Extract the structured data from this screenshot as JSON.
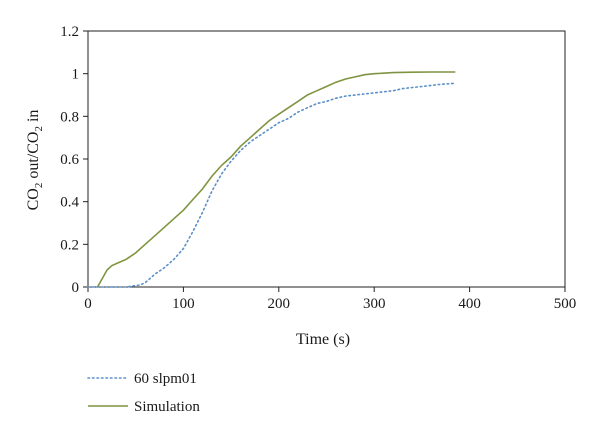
{
  "chart_data": {
    "type": "line",
    "title": "",
    "xlabel": "Time (s)",
    "ylabel_parts": [
      "CO",
      "2",
      " out/CO",
      "2",
      " in"
    ],
    "xlim": [
      0,
      500
    ],
    "ylim": [
      0,
      1.2
    ],
    "xticks": [
      0,
      100,
      200,
      300,
      400,
      500
    ],
    "yticks": [
      0,
      0.2,
      0.4,
      0.6,
      0.8,
      1,
      1.2
    ],
    "xtick_labels": [
      "0",
      "100",
      "200",
      "300",
      "400",
      "500"
    ],
    "ytick_labels": [
      "0",
      "0.2",
      "0.4",
      "0.6",
      "0.8",
      "1",
      "1.2"
    ],
    "grid": false,
    "legend_position": "bottom-left",
    "series": [
      {
        "name": "60 slpm01",
        "style": "dotted",
        "color": "#5b8fc7",
        "points": [
          [
            0,
            0
          ],
          [
            20,
            0
          ],
          [
            40,
            0
          ],
          [
            55,
            0.01
          ],
          [
            60,
            0.02
          ],
          [
            65,
            0.04
          ],
          [
            70,
            0.06
          ],
          [
            80,
            0.09
          ],
          [
            90,
            0.13
          ],
          [
            100,
            0.18
          ],
          [
            110,
            0.26
          ],
          [
            120,
            0.35
          ],
          [
            130,
            0.45
          ],
          [
            140,
            0.53
          ],
          [
            150,
            0.59
          ],
          [
            160,
            0.64
          ],
          [
            170,
            0.68
          ],
          [
            180,
            0.71
          ],
          [
            190,
            0.74
          ],
          [
            200,
            0.77
          ],
          [
            210,
            0.79
          ],
          [
            220,
            0.82
          ],
          [
            230,
            0.84
          ],
          [
            240,
            0.86
          ],
          [
            250,
            0.87
          ],
          [
            260,
            0.885
          ],
          [
            270,
            0.895
          ],
          [
            280,
            0.9
          ],
          [
            290,
            0.905
          ],
          [
            300,
            0.91
          ],
          [
            310,
            0.915
          ],
          [
            320,
            0.92
          ],
          [
            330,
            0.93
          ],
          [
            340,
            0.935
          ],
          [
            350,
            0.94
          ],
          [
            360,
            0.945
          ],
          [
            370,
            0.95
          ],
          [
            385,
            0.955
          ]
        ]
      },
      {
        "name": "Simulation",
        "style": "solid",
        "color": "#7f9440",
        "points": [
          [
            10,
            0
          ],
          [
            15,
            0.04
          ],
          [
            20,
            0.08
          ],
          [
            25,
            0.1
          ],
          [
            30,
            0.11
          ],
          [
            40,
            0.13
          ],
          [
            50,
            0.16
          ],
          [
            60,
            0.2
          ],
          [
            70,
            0.24
          ],
          [
            80,
            0.28
          ],
          [
            90,
            0.32
          ],
          [
            100,
            0.36
          ],
          [
            110,
            0.41
          ],
          [
            120,
            0.46
          ],
          [
            130,
            0.52
          ],
          [
            140,
            0.57
          ],
          [
            150,
            0.61
          ],
          [
            160,
            0.66
          ],
          [
            170,
            0.7
          ],
          [
            180,
            0.74
          ],
          [
            190,
            0.78
          ],
          [
            200,
            0.81
          ],
          [
            210,
            0.84
          ],
          [
            220,
            0.87
          ],
          [
            230,
            0.9
          ],
          [
            240,
            0.92
          ],
          [
            250,
            0.94
          ],
          [
            260,
            0.96
          ],
          [
            270,
            0.975
          ],
          [
            280,
            0.985
          ],
          [
            290,
            0.995
          ],
          [
            300,
            1.0
          ],
          [
            320,
            1.005
          ],
          [
            340,
            1.007
          ],
          [
            360,
            1.008
          ],
          [
            385,
            1.008
          ]
        ]
      }
    ]
  }
}
